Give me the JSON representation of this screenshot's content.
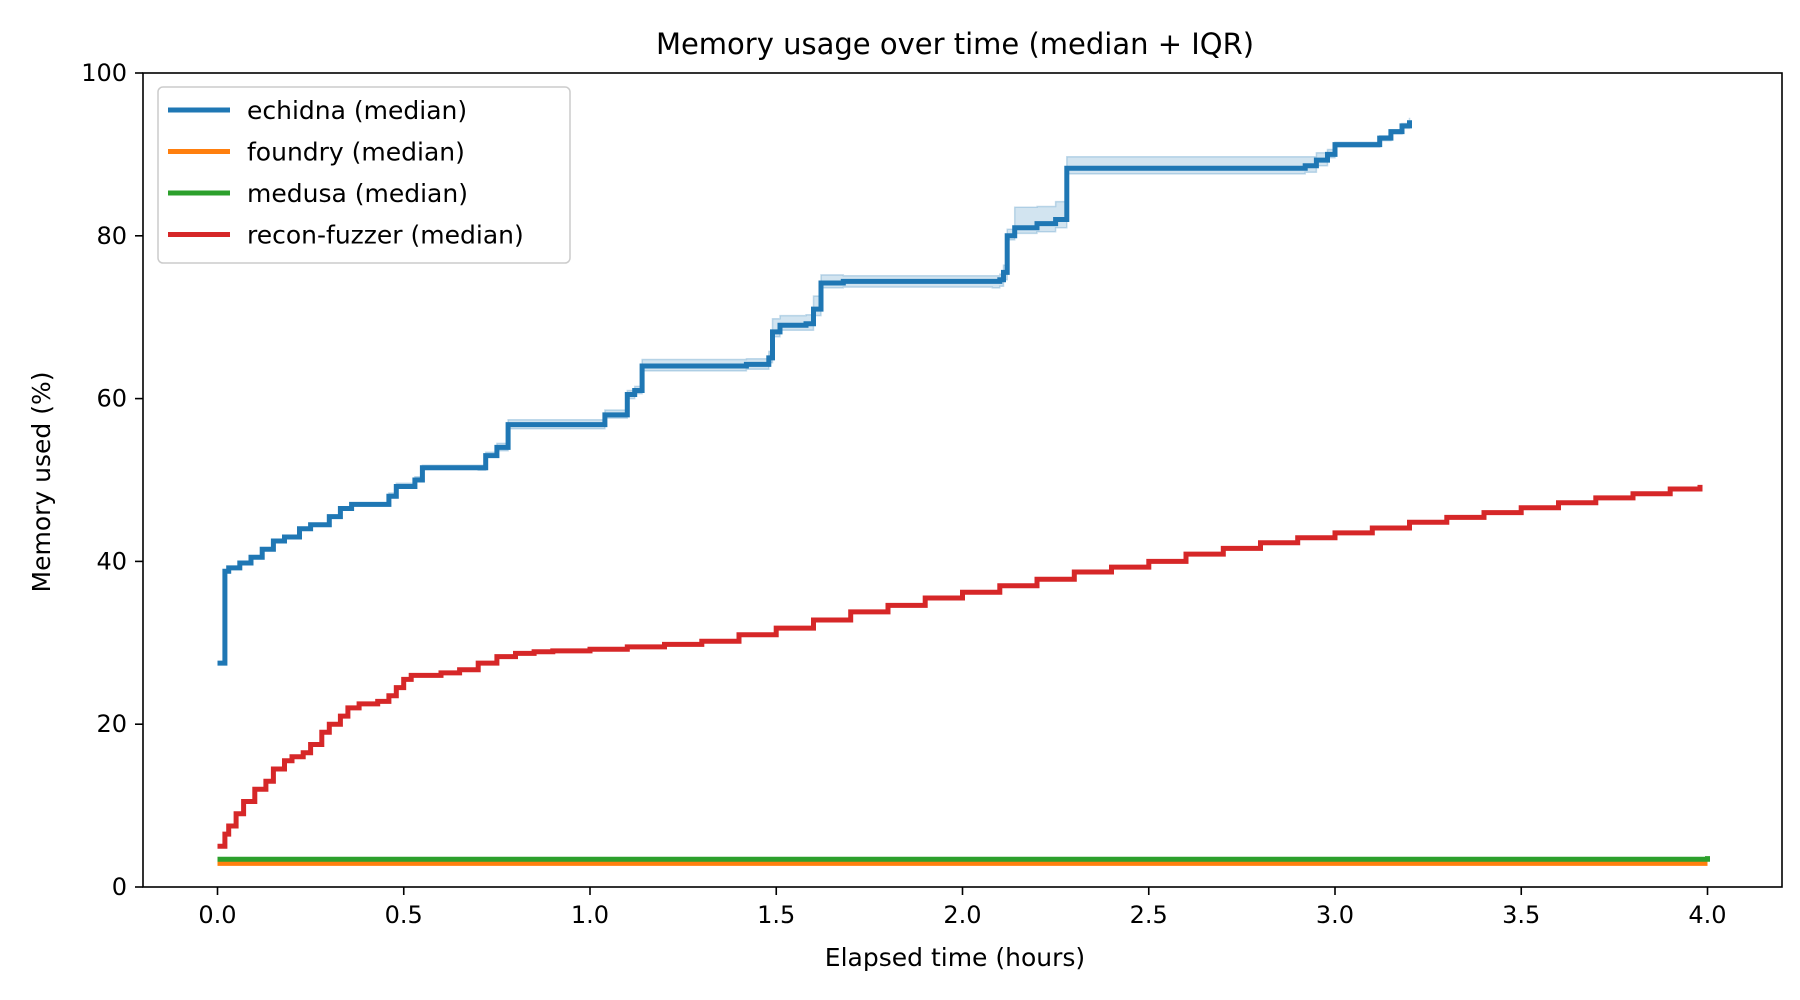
{
  "chart_data": {
    "type": "line",
    "title": "Memory usage over time (median + IQR)",
    "xlabel": "Elapsed time (hours)",
    "ylabel": "Memory used (%)",
    "xlim": [
      -0.2,
      4.2
    ],
    "ylim": [
      0,
      100
    ],
    "xticks": [
      0.0,
      0.5,
      1.0,
      1.5,
      2.0,
      2.5,
      3.0,
      3.5,
      4.0
    ],
    "xtick_labels": [
      "0.0",
      "0.5",
      "1.0",
      "1.5",
      "2.0",
      "2.5",
      "3.0",
      "3.5",
      "4.0"
    ],
    "yticks": [
      0,
      20,
      40,
      60,
      80,
      100
    ],
    "ytick_labels": [
      "0",
      "20",
      "40",
      "60",
      "80",
      "100"
    ],
    "grid": false,
    "legend_position": "top-left",
    "colors": {
      "echidna": "#1f77b4",
      "foundry": "#ff7f0e",
      "medusa": "#2ca02c",
      "recon-fuzzer": "#d62728"
    },
    "series": [
      {
        "name": "echidna (median)",
        "color": "#1f77b4",
        "step": true,
        "iqr_band": true,
        "x": [
          0.0,
          0.02,
          0.03,
          0.06,
          0.09,
          0.12,
          0.15,
          0.18,
          0.22,
          0.25,
          0.3,
          0.33,
          0.36,
          0.38,
          0.46,
          0.48,
          0.53,
          0.55,
          0.7,
          0.72,
          0.75,
          0.78,
          1.02,
          1.04,
          1.1,
          1.12,
          1.14,
          1.3,
          1.42,
          1.48,
          1.49,
          1.51,
          1.58,
          1.6,
          1.62,
          1.68,
          2.08,
          2.1,
          2.11,
          2.12,
          2.14,
          2.2,
          2.25,
          2.28,
          2.29,
          2.92,
          2.95,
          2.98,
          3.0,
          3.01,
          3.12,
          3.15,
          3.18,
          3.2
        ],
        "values": [
          27.5,
          38.8,
          39.2,
          39.8,
          40.5,
          41.5,
          42.5,
          43.0,
          44.0,
          44.5,
          45.5,
          46.5,
          47.0,
          47.0,
          48.0,
          49.2,
          50.0,
          51.5,
          51.5,
          53.0,
          54.0,
          56.8,
          56.8,
          58.0,
          60.5,
          61.0,
          64.0,
          64.0,
          64.2,
          65.0,
          68.2,
          69.0,
          69.2,
          71.0,
          74.2,
          74.4,
          74.4,
          74.6,
          75.5,
          80.0,
          81.0,
          81.5,
          82.0,
          88.3,
          88.3,
          88.6,
          89.3,
          90.0,
          91.2,
          91.2,
          92.0,
          92.8,
          93.5,
          94.2
        ],
        "iqr_low": [
          27.5,
          38.8,
          39.2,
          39.8,
          40.5,
          41.5,
          42.5,
          43.0,
          44.0,
          44.5,
          45.5,
          46.5,
          46.8,
          46.8,
          47.8,
          49.0,
          49.8,
          51.3,
          51.2,
          52.8,
          53.6,
          56.3,
          56.3,
          57.6,
          60.0,
          60.6,
          63.4,
          63.4,
          63.6,
          64.4,
          67.6,
          68.4,
          68.4,
          70.2,
          73.6,
          73.7,
          73.6,
          73.8,
          74.6,
          79.5,
          80.3,
          80.5,
          81.0,
          87.6,
          87.6,
          87.8,
          88.6,
          89.6,
          90.9,
          90.9,
          91.7,
          92.5,
          93.2,
          94.0
        ],
        "iqr_high": [
          27.5,
          38.8,
          39.2,
          39.8,
          40.5,
          41.5,
          42.5,
          43.0,
          44.0,
          44.5,
          45.5,
          46.5,
          47.2,
          47.2,
          48.4,
          49.6,
          50.4,
          51.8,
          51.8,
          53.4,
          54.5,
          57.4,
          57.4,
          58.6,
          61.0,
          61.5,
          64.8,
          64.8,
          64.9,
          65.8,
          69.8,
          70.2,
          70.3,
          72.6,
          75.2,
          75.1,
          75.1,
          75.3,
          76.4,
          80.8,
          83.5,
          83.6,
          84.2,
          89.7,
          89.7,
          89.7,
          90.2,
          90.6,
          91.5,
          91.5,
          92.3,
          93.0,
          93.8,
          94.5
        ]
      },
      {
        "name": "foundry (median)",
        "color": "#ff7f0e",
        "step": true,
        "iqr_band": false,
        "x": [
          0.0,
          0.5,
          1.0,
          1.5,
          2.0,
          2.5,
          3.0,
          3.5,
          4.0
        ],
        "values": [
          2.9,
          2.9,
          2.9,
          2.9,
          2.9,
          2.9,
          2.9,
          2.9,
          2.9
        ]
      },
      {
        "name": "medusa (median)",
        "color": "#2ca02c",
        "step": true,
        "iqr_band": false,
        "x": [
          0.0,
          0.5,
          1.0,
          1.5,
          2.0,
          2.5,
          3.0,
          3.5,
          3.98,
          4.0
        ],
        "values": [
          3.4,
          3.4,
          3.4,
          3.4,
          3.4,
          3.4,
          3.4,
          3.4,
          3.4,
          3.8
        ]
      },
      {
        "name": "recon-fuzzer (median)",
        "color": "#d62728",
        "step": true,
        "iqr_band": false,
        "x": [
          0.0,
          0.02,
          0.03,
          0.05,
          0.07,
          0.1,
          0.13,
          0.15,
          0.18,
          0.2,
          0.23,
          0.25,
          0.28,
          0.3,
          0.33,
          0.35,
          0.38,
          0.43,
          0.46,
          0.48,
          0.5,
          0.52,
          0.55,
          0.6,
          0.65,
          0.7,
          0.75,
          0.8,
          0.85,
          0.9,
          1.0,
          1.1,
          1.2,
          1.3,
          1.4,
          1.5,
          1.6,
          1.7,
          1.8,
          1.9,
          2.0,
          2.1,
          2.2,
          2.3,
          2.4,
          2.5,
          2.6,
          2.7,
          2.8,
          2.9,
          3.0,
          3.1,
          3.2,
          3.3,
          3.4,
          3.5,
          3.6,
          3.7,
          3.8,
          3.9,
          3.98
        ],
        "values": [
          5.0,
          6.5,
          7.5,
          9.0,
          10.5,
          12.0,
          13.0,
          14.5,
          15.5,
          16.0,
          16.5,
          17.5,
          19.0,
          20.0,
          21.0,
          22.0,
          22.5,
          22.8,
          23.5,
          24.5,
          25.5,
          26.0,
          26.0,
          26.3,
          26.7,
          27.5,
          28.3,
          28.7,
          28.9,
          29.0,
          29.2,
          29.5,
          29.8,
          30.2,
          31.0,
          31.8,
          32.8,
          33.8,
          34.6,
          35.5,
          36.2,
          37.0,
          37.8,
          38.7,
          39.3,
          40.0,
          40.9,
          41.6,
          42.3,
          42.9,
          43.5,
          44.1,
          44.8,
          45.4,
          46.0,
          46.6,
          47.2,
          47.8,
          48.3,
          48.9,
          49.4
        ]
      }
    ]
  }
}
